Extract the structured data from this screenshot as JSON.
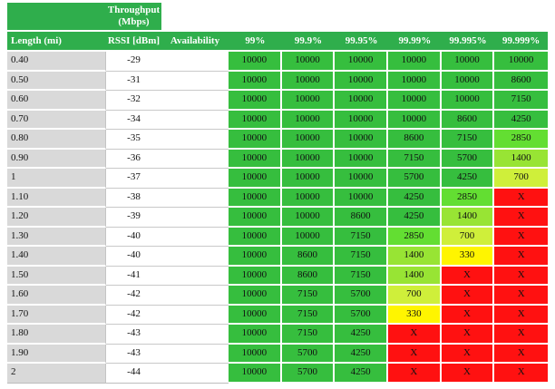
{
  "table": {
    "title_line1": "Throughput",
    "title_line2": "(Mbps)",
    "columns": [
      "Length (mi)",
      "RSSI [dBm]",
      "Availability",
      "99%",
      "99.9%",
      "99.95%",
      "99.99%",
      "99.995%",
      "99.999%"
    ],
    "rows": [
      {
        "length": "0.40",
        "rssi": "-29",
        "values": [
          "10000",
          "10000",
          "10000",
          "10000",
          "10000",
          "10000"
        ]
      },
      {
        "length": "0.50",
        "rssi": "-31",
        "values": [
          "10000",
          "10000",
          "10000",
          "10000",
          "10000",
          "8600"
        ]
      },
      {
        "length": "0.60",
        "rssi": "-32",
        "values": [
          "10000",
          "10000",
          "10000",
          "10000",
          "10000",
          "7150"
        ]
      },
      {
        "length": "0.70",
        "rssi": "-34",
        "values": [
          "10000",
          "10000",
          "10000",
          "10000",
          "8600",
          "4250"
        ]
      },
      {
        "length": "0.80",
        "rssi": "-35",
        "values": [
          "10000",
          "10000",
          "10000",
          "8600",
          "7150",
          "2850"
        ]
      },
      {
        "length": "0.90",
        "rssi": "-36",
        "values": [
          "10000",
          "10000",
          "10000",
          "7150",
          "5700",
          "1400"
        ]
      },
      {
        "length": "1",
        "rssi": "-37",
        "values": [
          "10000",
          "10000",
          "10000",
          "5700",
          "4250",
          "700"
        ]
      },
      {
        "length": "1.10",
        "rssi": "-38",
        "values": [
          "10000",
          "10000",
          "10000",
          "4250",
          "2850",
          "X"
        ]
      },
      {
        "length": "1.20",
        "rssi": "-39",
        "values": [
          "10000",
          "10000",
          "8600",
          "4250",
          "1400",
          "X"
        ]
      },
      {
        "length": "1.30",
        "rssi": "-40",
        "values": [
          "10000",
          "10000",
          "7150",
          "2850",
          "700",
          "X"
        ]
      },
      {
        "length": "1.40",
        "rssi": "-40",
        "values": [
          "10000",
          "8600",
          "7150",
          "1400",
          "330",
          "X"
        ]
      },
      {
        "length": "1.50",
        "rssi": "-41",
        "values": [
          "10000",
          "8600",
          "7150",
          "1400",
          "X",
          "X"
        ]
      },
      {
        "length": "1.60",
        "rssi": "-42",
        "values": [
          "10000",
          "7150",
          "5700",
          "700",
          "X",
          "X"
        ]
      },
      {
        "length": "1.70",
        "rssi": "-42",
        "values": [
          "10000",
          "7150",
          "5700",
          "330",
          "X",
          "X"
        ]
      },
      {
        "length": "1.80",
        "rssi": "-43",
        "values": [
          "10000",
          "7150",
          "4250",
          "X",
          "X",
          "X"
        ]
      },
      {
        "length": "1.90",
        "rssi": "-43",
        "values": [
          "10000",
          "5700",
          "4250",
          "X",
          "X",
          "X"
        ]
      },
      {
        "length": "2",
        "rssi": "-44",
        "values": [
          "10000",
          "5700",
          "4250",
          "X",
          "X",
          "X"
        ]
      }
    ]
  },
  "colors": {
    "header_green": "#2FAE4C",
    "length_col_gray": "#D9D9D9",
    "grid_line_gray": "#C9C9C9",
    "value_colors": {
      "10000": "#36BE3E",
      "8600": "#36BE3E",
      "7150": "#36BE3E",
      "5700": "#36BE3E",
      "4250": "#36BE3E",
      "2850": "#63DE32",
      "1400": "#98E434",
      "700": "#CFEF3A",
      "330": "#FFF500",
      "X": "#FF1111"
    }
  }
}
